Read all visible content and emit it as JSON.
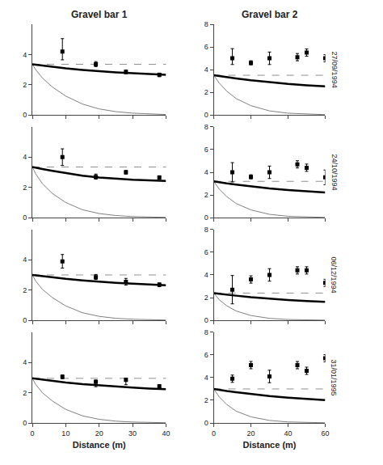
{
  "chart_data": [
    {
      "type": "line",
      "title": "Gravel bar 1",
      "xlim": [
        0,
        40
      ],
      "ylim": [
        0,
        6
      ],
      "xticks": [
        0,
        10,
        20,
        30,
        40
      ],
      "yticks": [
        0,
        2,
        4
      ],
      "grid": false,
      "tick_labels": "y",
      "series": [
        {
          "type": "line",
          "color": "#808080",
          "line_style": "thin",
          "x": [
            0,
            1,
            3,
            6,
            10,
            15,
            20,
            25,
            30,
            35,
            40
          ],
          "values": [
            3.35,
            3.0,
            2.45,
            1.85,
            1.25,
            0.72,
            0.4,
            0.22,
            0.12,
            0.06,
            0.03
          ]
        },
        {
          "type": "line",
          "color": "#000000",
          "line_style": "thick",
          "x": [
            0,
            1,
            3,
            6,
            10,
            15,
            20,
            25,
            30,
            35,
            40
          ],
          "values": [
            3.35,
            3.32,
            3.26,
            3.18,
            3.08,
            2.98,
            2.89,
            2.82,
            2.76,
            2.71,
            2.66
          ]
        },
        {
          "type": "hline",
          "color": "#909090",
          "line_style": "dashed",
          "values": [
            3.35
          ]
        },
        {
          "type": "scatter",
          "color": "#000000",
          "marker": "square",
          "x": [
            9,
            19,
            28,
            38
          ],
          "values": [
            4.2,
            3.35,
            2.85,
            2.65
          ],
          "error_low": [
            0.55,
            0.15,
            0.12,
            0.12
          ],
          "error_high": [
            0.85,
            0.18,
            0.12,
            0.12
          ]
        }
      ]
    },
    {
      "type": "line",
      "title": "Gravel bar 2",
      "annotation": "27/09/1994",
      "xlim": [
        0,
        60
      ],
      "ylim": [
        0,
        8
      ],
      "xticks": [
        0,
        20,
        40,
        60
      ],
      "yticks": [
        0,
        2,
        4,
        6,
        8
      ],
      "grid": false,
      "tick_labels": "y",
      "series": [
        {
          "type": "line",
          "color": "#808080",
          "line_style": "thin",
          "x": [
            0,
            3,
            7,
            12,
            20,
            30,
            40,
            50,
            60
          ],
          "values": [
            3.5,
            2.8,
            2.1,
            1.45,
            0.82,
            0.36,
            0.155,
            0.067,
            0.029
          ]
        },
        {
          "type": "line",
          "color": "#000000",
          "line_style": "thick",
          "x": [
            0,
            3,
            7,
            12,
            20,
            30,
            40,
            50,
            60
          ],
          "values": [
            3.5,
            3.42,
            3.33,
            3.22,
            3.06,
            2.88,
            2.74,
            2.62,
            2.52
          ]
        },
        {
          "type": "hline",
          "color": "#909090",
          "line_style": "dashed",
          "values": [
            3.5
          ]
        },
        {
          "type": "scatter",
          "color": "#000000",
          "marker": "square",
          "x": [
            10,
            20,
            30,
            45,
            50,
            60
          ],
          "values": [
            5.0,
            4.6,
            5.0,
            5.1,
            5.5,
            5.0
          ],
          "error_low": [
            0.55,
            0.18,
            0.55,
            0.32,
            0.32,
            0.32
          ],
          "error_high": [
            0.85,
            0.18,
            0.55,
            0.32,
            0.32,
            0.32
          ]
        }
      ]
    },
    {
      "type": "line",
      "xlim": [
        0,
        40
      ],
      "ylim": [
        0,
        6
      ],
      "xticks": [
        0,
        10,
        20,
        30,
        40
      ],
      "yticks": [
        0,
        2,
        4
      ],
      "grid": false,
      "tick_labels": "y",
      "series": [
        {
          "type": "line",
          "color": "#808080",
          "line_style": "thin",
          "x": [
            0,
            1,
            3,
            6,
            10,
            15,
            20,
            25,
            30,
            35,
            40
          ],
          "values": [
            3.35,
            2.9,
            2.25,
            1.6,
            1.0,
            0.52,
            0.27,
            0.14,
            0.07,
            0.035,
            0.018
          ]
        },
        {
          "type": "line",
          "color": "#000000",
          "line_style": "thick",
          "x": [
            0,
            1,
            3,
            6,
            10,
            15,
            20,
            25,
            30,
            35,
            40
          ],
          "values": [
            3.35,
            3.3,
            3.22,
            3.1,
            2.95,
            2.78,
            2.65,
            2.57,
            2.51,
            2.47,
            2.43
          ]
        },
        {
          "type": "hline",
          "color": "#909090",
          "line_style": "dashed",
          "values": [
            3.35
          ]
        },
        {
          "type": "scatter",
          "color": "#000000",
          "marker": "square",
          "x": [
            9,
            19,
            28,
            38
          ],
          "values": [
            4.0,
            2.7,
            3.0,
            2.65
          ],
          "error_low": [
            0.55,
            0.15,
            0.12,
            0.12
          ],
          "error_high": [
            0.55,
            0.18,
            0.12,
            0.12
          ]
        }
      ]
    },
    {
      "type": "line",
      "annotation": "24/10/1994",
      "xlim": [
        0,
        60
      ],
      "ylim": [
        0,
        8
      ],
      "xticks": [
        0,
        20,
        40,
        60
      ],
      "yticks": [
        0,
        2,
        4,
        6,
        8
      ],
      "grid": false,
      "tick_labels": "y",
      "series": [
        {
          "type": "line",
          "color": "#808080",
          "line_style": "thin",
          "x": [
            0,
            3,
            7,
            12,
            20,
            30,
            40,
            50,
            60
          ],
          "values": [
            3.2,
            2.5,
            1.85,
            1.25,
            0.68,
            0.29,
            0.12,
            0.05,
            0.022
          ]
        },
        {
          "type": "line",
          "color": "#000000",
          "line_style": "thick",
          "x": [
            0,
            3,
            7,
            12,
            20,
            30,
            40,
            50,
            60
          ],
          "values": [
            3.2,
            3.11,
            3.02,
            2.91,
            2.75,
            2.57,
            2.43,
            2.32,
            2.22
          ]
        },
        {
          "type": "hline",
          "color": "#909090",
          "line_style": "dashed",
          "values": [
            3.2
          ]
        },
        {
          "type": "scatter",
          "color": "#000000",
          "marker": "square",
          "x": [
            10,
            20,
            30,
            45,
            50,
            60
          ],
          "values": [
            4.0,
            3.6,
            4.0,
            4.7,
            4.4,
            3.55
          ],
          "error_low": [
            0.85,
            0.18,
            0.55,
            0.32,
            0.32,
            0.65
          ],
          "error_high": [
            0.85,
            0.18,
            0.55,
            0.32,
            0.32,
            0.65
          ]
        }
      ]
    },
    {
      "type": "line",
      "xlim": [
        0,
        40
      ],
      "ylim": [
        0,
        6
      ],
      "xticks": [
        0,
        10,
        20,
        30,
        40
      ],
      "yticks": [
        0,
        2,
        4
      ],
      "grid": false,
      "tick_labels": "y",
      "series": [
        {
          "type": "line",
          "color": "#808080",
          "line_style": "thin",
          "x": [
            0,
            1,
            3,
            6,
            10,
            15,
            20,
            25,
            30,
            35,
            40
          ],
          "values": [
            3.0,
            2.6,
            2.05,
            1.5,
            0.95,
            0.5,
            0.26,
            0.13,
            0.07,
            0.035,
            0.018
          ]
        },
        {
          "type": "line",
          "color": "#000000",
          "line_style": "thick",
          "x": [
            0,
            1,
            3,
            6,
            10,
            15,
            20,
            25,
            30,
            35,
            40
          ],
          "values": [
            3.0,
            2.97,
            2.92,
            2.84,
            2.74,
            2.64,
            2.55,
            2.48,
            2.42,
            2.37,
            2.32
          ]
        },
        {
          "type": "hline",
          "color": "#909090",
          "line_style": "dashed",
          "values": [
            3.0
          ]
        },
        {
          "type": "scatter",
          "color": "#000000",
          "marker": "square",
          "x": [
            9,
            19,
            28,
            38
          ],
          "values": [
            3.9,
            2.85,
            2.55,
            2.35
          ],
          "error_low": [
            0.45,
            0.15,
            0.22,
            0.12
          ],
          "error_high": [
            0.45,
            0.18,
            0.22,
            0.12
          ]
        }
      ]
    },
    {
      "type": "line",
      "annotation": "06/12/1994",
      "xlim": [
        0,
        60
      ],
      "ylim": [
        0,
        8
      ],
      "xticks": [
        0,
        20,
        40,
        60
      ],
      "yticks": [
        0,
        2,
        4,
        6,
        8
      ],
      "grid": false,
      "tick_labels": "y",
      "series": [
        {
          "type": "line",
          "color": "#808080",
          "line_style": "thin",
          "x": [
            0,
            3,
            7,
            12,
            20,
            30,
            40,
            50,
            60
          ],
          "values": [
            2.4,
            1.8,
            1.28,
            0.82,
            0.42,
            0.17,
            0.069,
            0.028,
            0.011
          ]
        },
        {
          "type": "line",
          "color": "#000000",
          "line_style": "thick",
          "x": [
            0,
            3,
            7,
            12,
            20,
            30,
            40,
            50,
            60
          ],
          "values": [
            2.4,
            2.33,
            2.26,
            2.17,
            2.04,
            1.9,
            1.79,
            1.7,
            1.62
          ]
        },
        {
          "type": "hline",
          "color": "#909090",
          "line_style": "dashed",
          "values": [
            2.4
          ]
        },
        {
          "type": "scatter",
          "color": "#000000",
          "marker": "square",
          "x": [
            10,
            20,
            30,
            45,
            50,
            60
          ],
          "values": [
            2.7,
            3.6,
            4.0,
            4.4,
            4.4,
            3.3
          ],
          "error_low": [
            1.25,
            0.32,
            0.55,
            0.32,
            0.32,
            0.32
          ],
          "error_high": [
            1.25,
            0.32,
            0.55,
            0.32,
            0.32,
            0.32
          ]
        }
      ]
    },
    {
      "type": "line",
      "xlabel": "Distance (m)",
      "xlim": [
        0,
        40
      ],
      "ylim": [
        0,
        6
      ],
      "xticks": [
        0,
        10,
        20,
        30,
        40
      ],
      "yticks": [
        0,
        2,
        4
      ],
      "grid": false,
      "series": [
        {
          "type": "line",
          "color": "#808080",
          "line_style": "thin",
          "x": [
            0,
            1,
            3,
            6,
            10,
            15,
            20,
            25,
            30,
            35,
            40
          ],
          "values": [
            2.95,
            2.55,
            2.0,
            1.45,
            0.9,
            0.47,
            0.24,
            0.12,
            0.06,
            0.03,
            0.015
          ]
        },
        {
          "type": "line",
          "color": "#000000",
          "line_style": "thick",
          "x": [
            0,
            1,
            3,
            6,
            10,
            15,
            20,
            25,
            30,
            35,
            40
          ],
          "values": [
            2.95,
            2.92,
            2.87,
            2.79,
            2.68,
            2.57,
            2.48,
            2.4,
            2.34,
            2.28,
            2.23
          ]
        },
        {
          "type": "hline",
          "color": "#909090",
          "line_style": "dashed",
          "values": [
            2.95
          ]
        },
        {
          "type": "scatter",
          "color": "#000000",
          "marker": "square",
          "x": [
            9,
            19,
            28,
            38
          ],
          "values": [
            3.05,
            2.72,
            2.85,
            2.42
          ],
          "error_low": [
            0.12,
            0.32,
            0.32,
            0.12
          ],
          "error_high": [
            0.12,
            0.12,
            0.12,
            0.12
          ]
        }
      ]
    },
    {
      "type": "line",
      "xlabel": "Distance (m)",
      "annotation": "31/01/1995",
      "xlim": [
        0,
        60
      ],
      "ylim": [
        0,
        8
      ],
      "xticks": [
        0,
        20,
        40,
        60
      ],
      "yticks": [
        0,
        2,
        4,
        6,
        8
      ],
      "grid": false,
      "series": [
        {
          "type": "line",
          "color": "#808080",
          "line_style": "thin",
          "x": [
            0,
            3,
            7,
            12,
            20,
            30,
            40,
            50,
            60
          ],
          "values": [
            3.0,
            2.28,
            1.63,
            1.04,
            0.54,
            0.22,
            0.088,
            0.036,
            0.015
          ]
        },
        {
          "type": "line",
          "color": "#000000",
          "line_style": "thick",
          "x": [
            0,
            3,
            7,
            12,
            20,
            30,
            40,
            50,
            60
          ],
          "values": [
            3.0,
            2.91,
            2.82,
            2.71,
            2.55,
            2.37,
            2.23,
            2.12,
            2.02
          ]
        },
        {
          "type": "hline",
          "color": "#909090",
          "line_style": "dashed",
          "values": [
            3.0
          ]
        },
        {
          "type": "scatter",
          "color": "#000000",
          "marker": "square",
          "x": [
            10,
            20,
            30,
            45,
            50,
            60
          ],
          "values": [
            3.9,
            5.1,
            4.1,
            5.1,
            4.6,
            5.7
          ],
          "error_low": [
            0.32,
            0.32,
            0.55,
            0.32,
            0.32,
            0.32
          ],
          "error_high": [
            0.32,
            0.32,
            0.55,
            0.32,
            0.32,
            0.32
          ]
        }
      ]
    }
  ]
}
